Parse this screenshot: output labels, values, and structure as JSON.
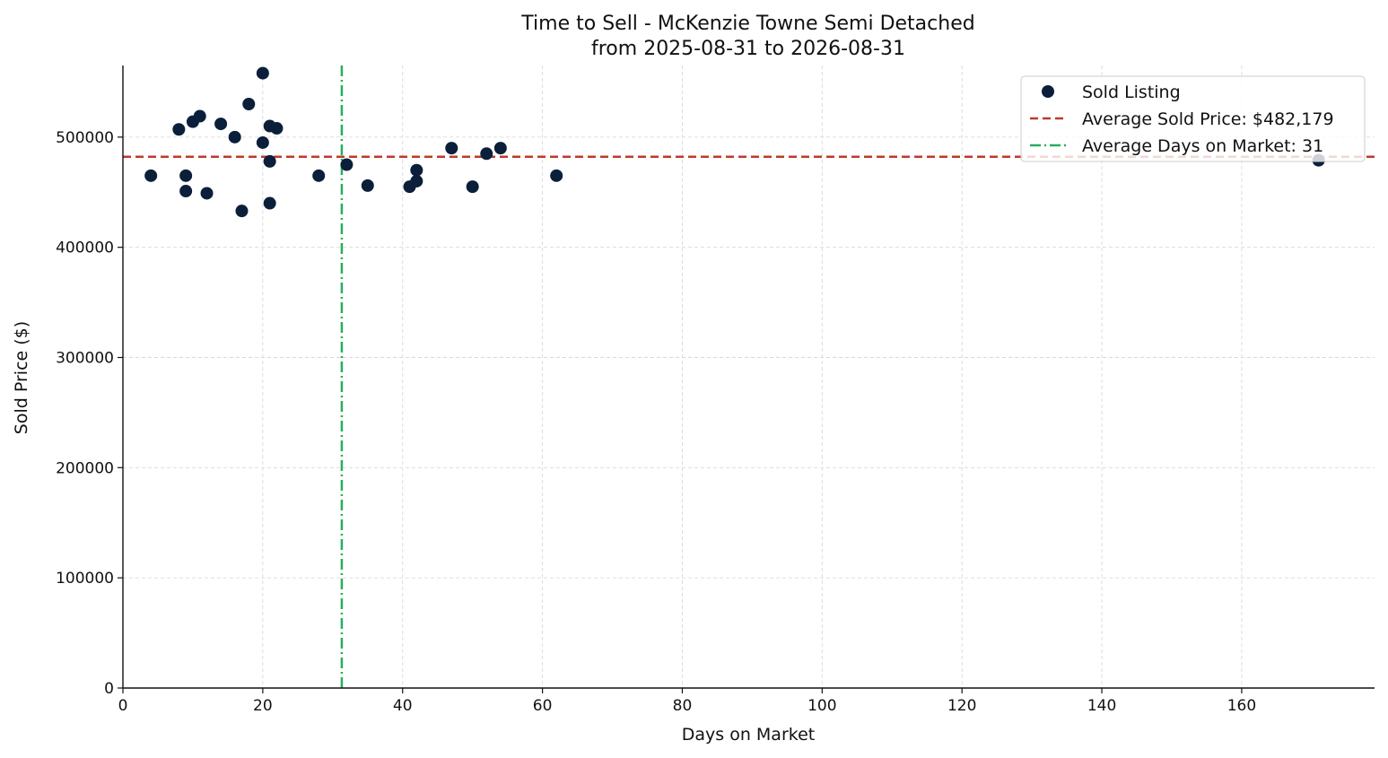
{
  "chart_data": {
    "type": "scatter",
    "title": "Time to Sell - McKenzie Towne Semi Detached",
    "subtitle": "from 2025-08-31 to 2026-08-31",
    "xlabel": "Days on Market",
    "ylabel": "Sold Price ($)",
    "xlim": [
      0,
      179
    ],
    "ylim": [
      0,
      565000
    ],
    "xticks": [
      0,
      20,
      40,
      60,
      80,
      100,
      120,
      140,
      160
    ],
    "yticks": [
      0,
      100000,
      200000,
      300000,
      400000,
      500000
    ],
    "grid": true,
    "legend_position": "top-right",
    "series": [
      {
        "name": "Sold Listing",
        "color": "#0b1f3a",
        "points": [
          {
            "x": 4,
            "y": 465000
          },
          {
            "x": 8,
            "y": 507000
          },
          {
            "x": 9,
            "y": 465000
          },
          {
            "x": 9,
            "y": 451000
          },
          {
            "x": 10,
            "y": 514000
          },
          {
            "x": 11,
            "y": 519000
          },
          {
            "x": 12,
            "y": 449000
          },
          {
            "x": 14,
            "y": 512000
          },
          {
            "x": 16,
            "y": 500000
          },
          {
            "x": 17,
            "y": 433000
          },
          {
            "x": 18,
            "y": 530000
          },
          {
            "x": 20,
            "y": 558000
          },
          {
            "x": 20,
            "y": 495000
          },
          {
            "x": 21,
            "y": 510000
          },
          {
            "x": 21,
            "y": 478000
          },
          {
            "x": 21,
            "y": 440000
          },
          {
            "x": 22,
            "y": 508000
          },
          {
            "x": 28,
            "y": 465000
          },
          {
            "x": 32,
            "y": 475000
          },
          {
            "x": 35,
            "y": 456000
          },
          {
            "x": 41,
            "y": 455000
          },
          {
            "x": 42,
            "y": 470000
          },
          {
            "x": 42,
            "y": 460000
          },
          {
            "x": 47,
            "y": 490000
          },
          {
            "x": 50,
            "y": 455000
          },
          {
            "x": 52,
            "y": 485000
          },
          {
            "x": 54,
            "y": 490000
          },
          {
            "x": 62,
            "y": 465000
          },
          {
            "x": 171,
            "y": 479000
          }
        ]
      }
    ],
    "reference_lines": [
      {
        "name": "Average Sold Price: $482,179",
        "orientation": "horizontal",
        "value": 482179,
        "color": "#c0392b",
        "style": "dashed"
      },
      {
        "name": "Average Days on Market: 31",
        "orientation": "vertical",
        "value": 31.3,
        "color": "#27ae60",
        "style": "dash-dot"
      }
    ]
  }
}
